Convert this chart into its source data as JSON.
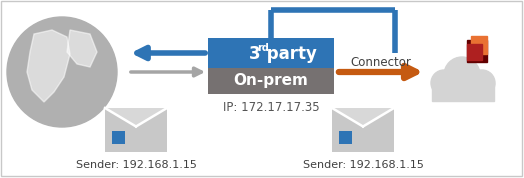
{
  "bg_color": "#ffffff",
  "border_color": "#c8c8c8",
  "box3rd_color": "#2e74b5",
  "boxonprem_color": "#767171",
  "boxonprem_text": "On-prem",
  "ip_text": "IP: 172.17.17.35",
  "connector_text": "Connector",
  "sender_left_text": "Sender: 192.168.1.15",
  "sender_right_text": "Sender: 192.168.1.15",
  "arrow_blue": "#2e74b5",
  "arrow_orange": "#c55a11",
  "arrow_gray": "#a5a5a5",
  "globe_color": "#b0b0b0",
  "cloud_color": "#d4d4d4",
  "envelope_color": "#c8c8c8",
  "envelope_stamp_color": "#2e74b5",
  "office_red": "#ae2020",
  "office_dark_red": "#620000",
  "office_orange": "#e97132"
}
